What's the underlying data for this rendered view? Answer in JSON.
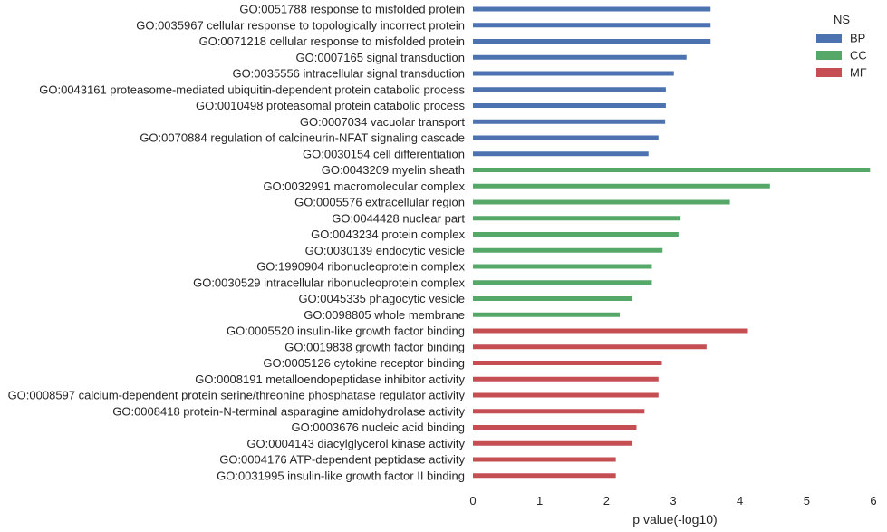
{
  "chart_data": {
    "type": "bar",
    "orientation": "horizontal",
    "xlabel": "p value(-log10)",
    "xlim": [
      0,
      6
    ],
    "xticks": [
      "0",
      "1",
      "2",
      "3",
      "4",
      "5",
      "6"
    ],
    "grid": false,
    "legend": {
      "title": "NS",
      "placement": "top-right",
      "entries": [
        {
          "name": "BP",
          "color": "#4c72b0"
        },
        {
          "name": "CC",
          "color": "#55a868"
        },
        {
          "name": "MF",
          "color": "#c44e52"
        }
      ]
    },
    "bars": [
      {
        "label": "GO:0051788 response to misfolded protein",
        "value": 3.56,
        "group": "BP"
      },
      {
        "label": "GO:0035967 cellular response to topologically incorrect protein",
        "value": 3.56,
        "group": "BP"
      },
      {
        "label": "GO:0071218 cellular response to misfolded protein",
        "value": 3.56,
        "group": "BP"
      },
      {
        "label": "GO:0007165 signal transduction",
        "value": 3.2,
        "group": "BP"
      },
      {
        "label": "GO:0035556 intracellular signal transduction",
        "value": 3.01,
        "group": "BP"
      },
      {
        "label": "GO:0043161 proteasome-mediated ubiquitin-dependent protein catabolic process",
        "value": 2.89,
        "group": "BP"
      },
      {
        "label": "GO:0010498 proteasomal protein catabolic process",
        "value": 2.89,
        "group": "BP"
      },
      {
        "label": "GO:0007034 vacuolar transport",
        "value": 2.88,
        "group": "BP"
      },
      {
        "label": "GO:0070884 regulation of calcineurin-NFAT signaling cascade",
        "value": 2.78,
        "group": "BP"
      },
      {
        "label": "GO:0030154 cell differentiation",
        "value": 2.63,
        "group": "BP"
      },
      {
        "label": "GO:0043209 myelin sheath",
        "value": 5.95,
        "group": "CC"
      },
      {
        "label": "GO:0032991 macromolecular complex",
        "value": 4.45,
        "group": "CC"
      },
      {
        "label": "GO:0005576 extracellular region",
        "value": 3.85,
        "group": "CC"
      },
      {
        "label": "GO:0044428 nuclear part",
        "value": 3.11,
        "group": "CC"
      },
      {
        "label": "GO:0043234 protein complex",
        "value": 3.08,
        "group": "CC"
      },
      {
        "label": "GO:0030139 endocytic vesicle",
        "value": 2.84,
        "group": "CC"
      },
      {
        "label": "GO:1990904 ribonucleoprotein complex",
        "value": 2.68,
        "group": "CC"
      },
      {
        "label": "GO:0030529 intracellular ribonucleoprotein complex",
        "value": 2.68,
        "group": "CC"
      },
      {
        "label": "GO:0045335 phagocytic vesicle",
        "value": 2.39,
        "group": "CC"
      },
      {
        "label": "GO:0098805 whole membrane",
        "value": 2.2,
        "group": "CC"
      },
      {
        "label": "GO:0005520 insulin-like growth factor binding",
        "value": 4.12,
        "group": "MF"
      },
      {
        "label": "GO:0019838 growth factor binding",
        "value": 3.5,
        "group": "MF"
      },
      {
        "label": "GO:0005126 cytokine receptor binding",
        "value": 2.83,
        "group": "MF"
      },
      {
        "label": "GO:0008191 metalloendopeptidase inhibitor activity",
        "value": 2.78,
        "group": "MF"
      },
      {
        "label": "GO:0008597 calcium-dependent protein serine/threonine phosphatase regulator activity",
        "value": 2.78,
        "group": "MF"
      },
      {
        "label": "GO:0008418 protein-N-terminal asparagine amidohydrolase activity",
        "value": 2.57,
        "group": "MF"
      },
      {
        "label": "GO:0003676 nucleic acid binding",
        "value": 2.45,
        "group": "MF"
      },
      {
        "label": "GO:0004143 diacylglycerol kinase activity",
        "value": 2.39,
        "group": "MF"
      },
      {
        "label": "GO:0004176 ATP-dependent peptidase activity",
        "value": 2.14,
        "group": "MF"
      },
      {
        "label": "GO:0031995 insulin-like growth factor II binding",
        "value": 2.14,
        "group": "MF"
      }
    ]
  }
}
